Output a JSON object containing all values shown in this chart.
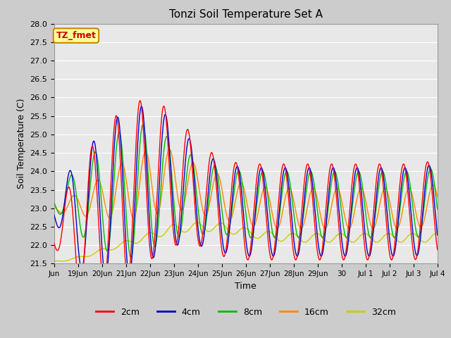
{
  "title": "Tonzi Soil Temperature Set A",
  "xlabel": "Time",
  "ylabel": "Soil Temperature (C)",
  "ylim": [
    21.5,
    28.0
  ],
  "xlim": [
    0,
    16
  ],
  "annotation_text": "TZ_fmet",
  "annotation_bg": "#FFFF99",
  "annotation_border": "#CC8800",
  "annotation_text_color": "#CC0000",
  "legend_entries": [
    "2cm",
    "4cm",
    "8cm",
    "16cm",
    "32cm"
  ],
  "legend_colors": [
    "#FF0000",
    "#0000CC",
    "#00BB00",
    "#FF8800",
    "#CCCC00"
  ],
  "fig_facecolor": "#CCCCCC",
  "ax_facecolor": "#E8E8E8",
  "grid_color": "#FFFFFF",
  "x_tick_positions": [
    0,
    1,
    2,
    3,
    4,
    5,
    6,
    7,
    8,
    9,
    10,
    11,
    12,
    13,
    14,
    15,
    16
  ],
  "x_tick_labels": [
    "Jun",
    "19Jun",
    "20Jun",
    "21Jun",
    "22Jun",
    "23Jun",
    "24Jun",
    "25Jun",
    "26Jun",
    "27Jun",
    "28Jun",
    "29Jun",
    "30",
    "Jul 1",
    "Jul 2",
    "Jul 3",
    "Jul 4"
  ],
  "y_tick_positions": [
    21.5,
    22.0,
    22.5,
    23.0,
    23.5,
    24.0,
    24.5,
    25.0,
    25.5,
    26.0,
    26.5,
    27.0,
    27.5,
    28.0
  ]
}
